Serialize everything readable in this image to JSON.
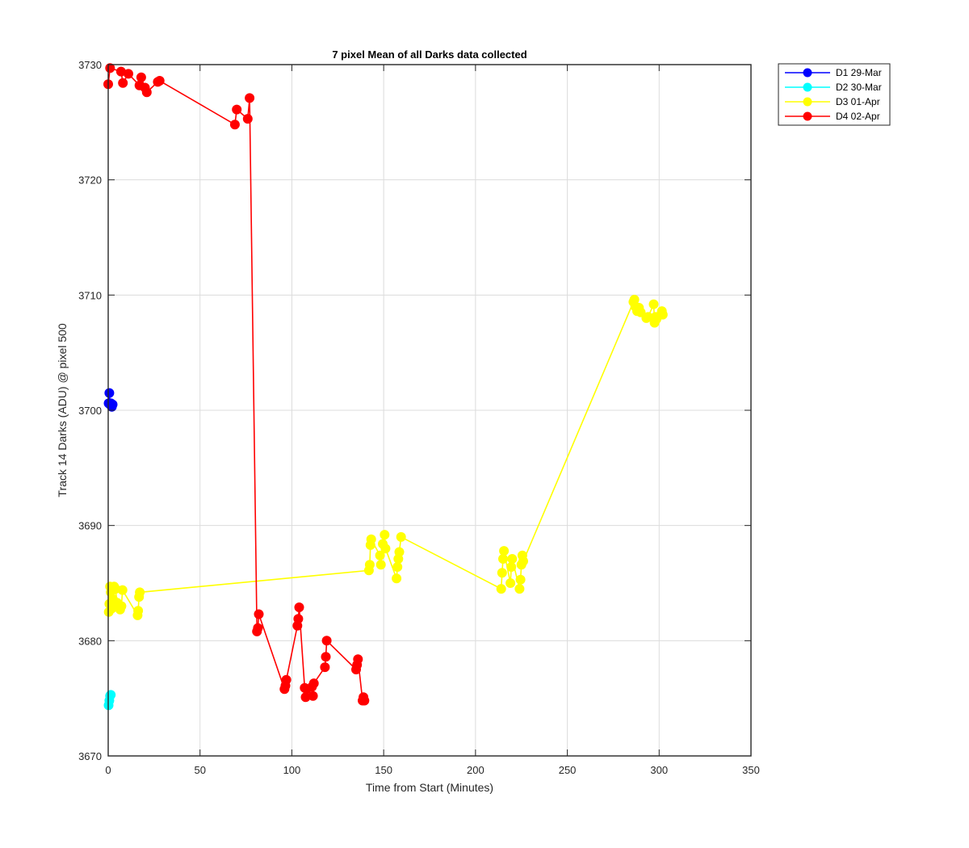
{
  "chart_data": {
    "type": "line",
    "title": "7 pixel Mean of all Darks data collected",
    "xlabel": "Time from Start (Minutes)",
    "ylabel": "Track 14 Darks (ADU) @ pixel 500",
    "xlim": [
      0,
      350
    ],
    "ylim": [
      3670,
      3730
    ],
    "xticks": [
      "0",
      "50",
      "100",
      "150",
      "200",
      "250",
      "300",
      "350"
    ],
    "yticks": [
      "3670",
      "3680",
      "3690",
      "3700",
      "3710",
      "3720",
      "3730"
    ],
    "grid": true,
    "legend_position": "outside-top-right",
    "series": [
      {
        "name": "D1 29-Mar",
        "color": "#0000ff",
        "x": [
          0.2,
          0.6,
          1.0,
          1.5,
          2.0,
          2.4
        ],
        "y": [
          3700.6,
          3701.5,
          3700.5,
          3700.6,
          3700.3,
          3700.5
        ]
      },
      {
        "name": "D2 30-Mar",
        "color": "#00ffff",
        "x": [
          0.2,
          0.6,
          1.0,
          1.4
        ],
        "y": [
          3674.4,
          3674.8,
          3675.2,
          3675.3
        ]
      },
      {
        "name": "D3 01-Apr",
        "color": "#ffff00",
        "x": [
          0.3,
          0.6,
          1.0,
          1.4,
          2.0,
          2.6,
          3.2,
          4.0,
          4.8,
          6.5,
          7.2,
          7.8,
          16.0,
          16.3,
          16.8,
          17.2,
          142.0,
          142.4,
          142.8,
          143.2,
          148.0,
          148.5,
          149.5,
          150.5,
          151.0,
          157.0,
          157.5,
          158.0,
          158.5,
          159.5,
          214.0,
          214.5,
          215.0,
          215.5,
          219.0,
          219.5,
          220.0,
          224.0,
          224.5,
          225.0,
          225.5,
          226.0,
          286.0,
          286.5,
          287.0,
          288.0,
          289.0,
          290.0,
          293.0,
          294.0,
          297.0,
          297.5,
          298.0,
          298.5,
          301.0,
          301.5,
          302.0
        ],
        "y": [
          3682.5,
          3683.2,
          3684.7,
          3684.2,
          3682.8,
          3683.6,
          3684.7,
          3684.5,
          3683.3,
          3682.7,
          3683.0,
          3684.4,
          3682.2,
          3682.6,
          3683.8,
          3684.2,
          3686.1,
          3686.6,
          3688.3,
          3688.8,
          3687.4,
          3686.6,
          3688.4,
          3689.2,
          3688.0,
          3685.4,
          3686.4,
          3687.1,
          3687.7,
          3689.0,
          3684.5,
          3685.9,
          3687.1,
          3687.8,
          3685.0,
          3686.4,
          3687.1,
          3684.5,
          3685.3,
          3686.6,
          3687.4,
          3686.9,
          3709.4,
          3709.6,
          3709.0,
          3708.6,
          3708.9,
          3708.5,
          3708.0,
          3708.1,
          3709.2,
          3707.6,
          3708.1,
          3707.9,
          3708.3,
          3708.6,
          3708.3
        ]
      },
      {
        "name": "D4 02-Apr",
        "color": "#ff0000",
        "x": [
          0.0,
          1.0,
          7.0,
          8.0,
          11.0,
          17.0,
          18.0,
          20.0,
          21.0,
          27.0,
          28.0,
          69.0,
          70.0,
          76.0,
          77.0,
          81.0,
          81.5,
          82.0,
          96.0,
          96.5,
          97.0,
          103.0,
          103.5,
          104.0,
          107.0,
          107.5,
          108.0,
          111.0,
          111.5,
          112.0,
          118.0,
          118.5,
          119.0,
          135.0,
          135.5,
          136.0,
          138.5,
          139.0,
          139.5
        ],
        "y": [
          3728.3,
          3729.7,
          3729.4,
          3728.4,
          3729.2,
          3728.2,
          3728.9,
          3728.0,
          3727.6,
          3728.5,
          3728.6,
          3724.8,
          3726.1,
          3725.3,
          3727.1,
          3680.8,
          3681.1,
          3682.3,
          3675.8,
          3676.1,
          3676.6,
          3681.3,
          3681.9,
          3682.9,
          3675.9,
          3675.1,
          3675.8,
          3676.0,
          3675.2,
          3676.3,
          3677.7,
          3678.6,
          3680.0,
          3677.5,
          3677.9,
          3678.4,
          3674.8,
          3675.1,
          3674.8
        ]
      }
    ]
  }
}
